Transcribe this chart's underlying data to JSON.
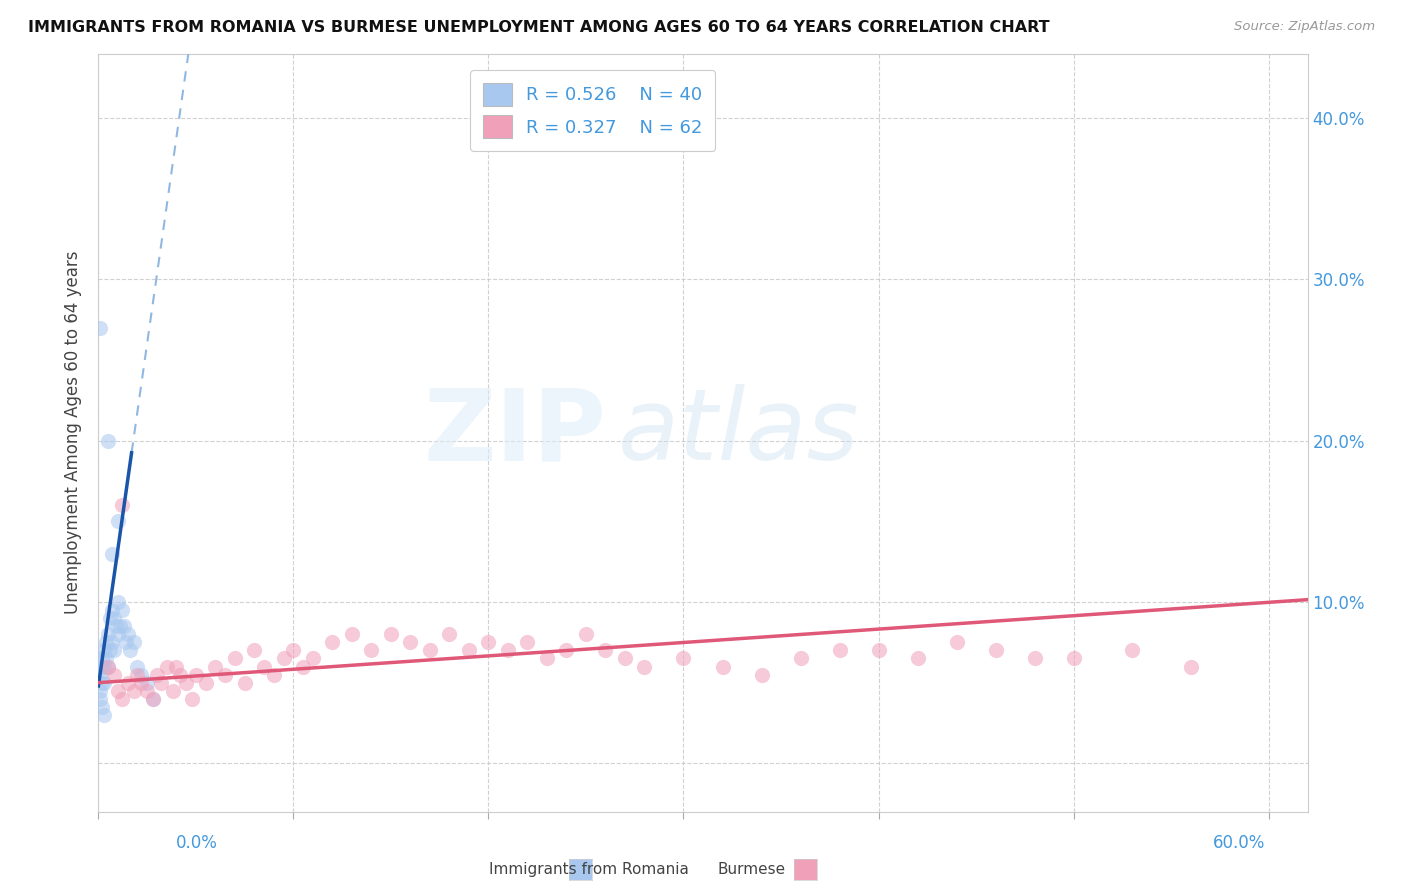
{
  "title": "IMMIGRANTS FROM ROMANIA VS BURMESE UNEMPLOYMENT AMONG AGES 60 TO 64 YEARS CORRELATION CHART",
  "source": "Source: ZipAtlas.com",
  "ylabel": "Unemployment Among Ages 60 to 64 years",
  "romania_label": "Immigrants from Romania",
  "burmese_label": "Burmese",
  "romania_R": "0.526",
  "romania_N": "40",
  "burmese_R": "0.327",
  "burmese_N": "62",
  "romania_scatter_color": "#a8c8f0",
  "burmese_scatter_color": "#f0a0b8",
  "romania_line_color": "#1a55aa",
  "burmese_line_color": "#e05878",
  "romania_dashed_color": "#90b8e0",
  "grid_color": "#cccccc",
  "title_color": "#111111",
  "source_color": "#999999",
  "axis_tick_color": "#4499dd",
  "ylabel_color": "#444444",
  "background": "#ffffff",
  "xlim": [
    0.0,
    0.62
  ],
  "ylim": [
    -0.03,
    0.44
  ],
  "yticks": [
    0.0,
    0.1,
    0.2,
    0.3,
    0.4
  ],
  "ytick_labels_left": [
    "",
    "",
    "",
    "",
    ""
  ],
  "ytick_labels_right": [
    "",
    "10.0%",
    "20.0%",
    "30.0%",
    "40.0%"
  ],
  "xtick_positions": [
    0.0,
    0.1,
    0.2,
    0.3,
    0.4,
    0.5,
    0.6
  ],
  "romania_x": [
    0.001,
    0.001,
    0.001,
    0.001,
    0.002,
    0.002,
    0.002,
    0.003,
    0.003,
    0.003,
    0.004,
    0.004,
    0.005,
    0.005,
    0.006,
    0.006,
    0.007,
    0.007,
    0.008,
    0.008,
    0.009,
    0.01,
    0.01,
    0.011,
    0.012,
    0.013,
    0.014,
    0.015,
    0.016,
    0.018,
    0.02,
    0.022,
    0.025,
    0.028,
    0.001,
    0.002,
    0.003,
    0.005,
    0.007,
    0.01
  ],
  "romania_y": [
    0.06,
    0.055,
    0.045,
    0.04,
    0.065,
    0.06,
    0.05,
    0.07,
    0.06,
    0.05,
    0.075,
    0.065,
    0.08,
    0.06,
    0.09,
    0.07,
    0.095,
    0.075,
    0.09,
    0.07,
    0.085,
    0.1,
    0.08,
    0.085,
    0.095,
    0.085,
    0.075,
    0.08,
    0.07,
    0.075,
    0.06,
    0.055,
    0.05,
    0.04,
    0.27,
    0.035,
    0.03,
    0.2,
    0.13,
    0.15
  ],
  "burmese_x": [
    0.005,
    0.008,
    0.01,
    0.012,
    0.015,
    0.018,
    0.02,
    0.022,
    0.025,
    0.028,
    0.03,
    0.032,
    0.035,
    0.038,
    0.04,
    0.042,
    0.045,
    0.048,
    0.05,
    0.055,
    0.06,
    0.065,
    0.07,
    0.075,
    0.08,
    0.085,
    0.09,
    0.095,
    0.1,
    0.105,
    0.11,
    0.12,
    0.13,
    0.14,
    0.15,
    0.16,
    0.17,
    0.18,
    0.19,
    0.2,
    0.21,
    0.22,
    0.23,
    0.24,
    0.25,
    0.26,
    0.27,
    0.28,
    0.3,
    0.32,
    0.34,
    0.36,
    0.38,
    0.4,
    0.42,
    0.44,
    0.46,
    0.48,
    0.5,
    0.53,
    0.56,
    0.012
  ],
  "burmese_y": [
    0.06,
    0.055,
    0.045,
    0.04,
    0.05,
    0.045,
    0.055,
    0.05,
    0.045,
    0.04,
    0.055,
    0.05,
    0.06,
    0.045,
    0.06,
    0.055,
    0.05,
    0.04,
    0.055,
    0.05,
    0.06,
    0.055,
    0.065,
    0.05,
    0.07,
    0.06,
    0.055,
    0.065,
    0.07,
    0.06,
    0.065,
    0.075,
    0.08,
    0.07,
    0.08,
    0.075,
    0.07,
    0.08,
    0.07,
    0.075,
    0.07,
    0.075,
    0.065,
    0.07,
    0.08,
    0.07,
    0.065,
    0.06,
    0.065,
    0.06,
    0.055,
    0.065,
    0.07,
    0.07,
    0.065,
    0.075,
    0.07,
    0.065,
    0.065,
    0.07,
    0.06,
    0.16
  ],
  "rom_line_slope": 8.5,
  "rom_line_intercept": 0.048,
  "bur_line_slope": 0.083,
  "bur_line_intercept": 0.05
}
